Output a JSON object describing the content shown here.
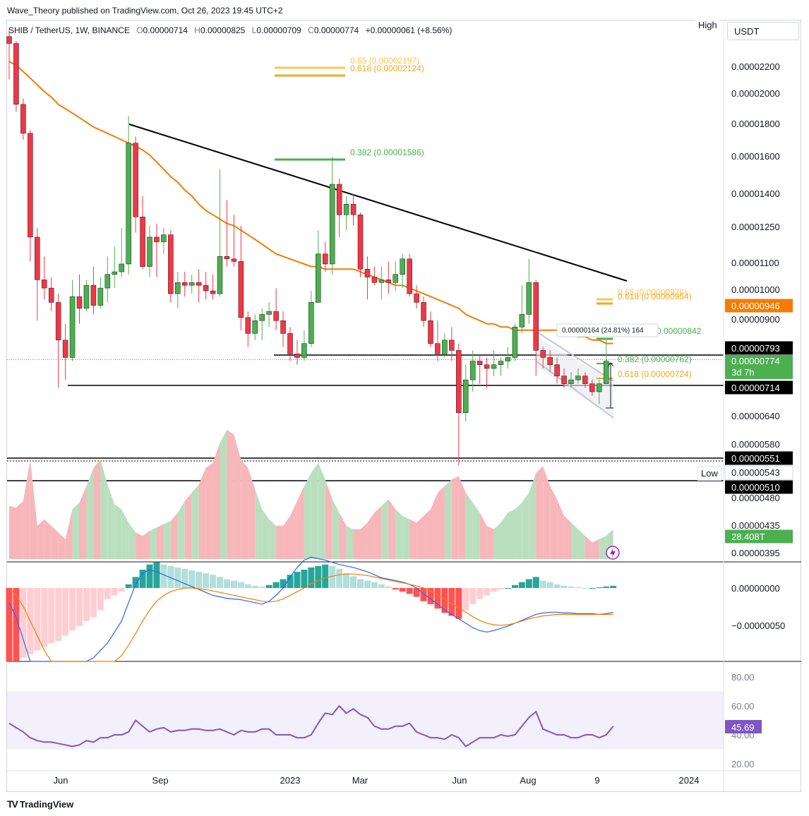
{
  "header": {
    "publisher": "Wave_Theory published on TradingView.com, Oct 26, 2023 19:45 UTC+2",
    "symbol": "SHIB / TetherUS, 1W, BINANCE",
    "open_key": "O",
    "open": "0.00000714",
    "high_key": "H",
    "high": "0.00000825",
    "low_key": "L",
    "low": "0.00000709",
    "close_key": "C",
    "close": "0.00000774",
    "change": "+0.00000061 (+8.56%)",
    "currency": "USDT",
    "high_label": "High",
    "low_label": "Low"
  },
  "colors": {
    "up": "#26a69a",
    "down": "#ef5350",
    "up_body": "#4caf50",
    "down_body": "#f23645",
    "ema": "#f57c00",
    "trendline": "#000000",
    "macd": "#2962ff",
    "signal": "#f57c00",
    "rsi": "#7e57c2",
    "vol_up": "#b9dfbe",
    "vol_down": "#f7b6ba"
  },
  "chart_data": [
    {
      "type": "candlestick",
      "x_axis_ticks": [
        "Jun",
        "Sep",
        "2023",
        "Mar",
        "Jun",
        "Aug",
        "9",
        "2024"
      ],
      "y_axis_ticks": [
        "0.00002200",
        "0.00002000",
        "0.00001800",
        "0.00001600",
        "0.00001400",
        "0.00001250",
        "0.00001100",
        "0.00001000",
        "0.00000900",
        "0.00000640",
        "0.00000580",
        "0.00000480",
        "0.00000435",
        "0.00000395"
      ],
      "candles": [
        {
          "o": 2.46e-05,
          "h": 2.52e-05,
          "l": 2.11e-05,
          "c": 2.4e-05
        },
        {
          "o": 2.4e-05,
          "h": 2.42e-05,
          "l": 1.88e-05,
          "c": 1.93e-05
        },
        {
          "o": 1.93e-05,
          "h": 1.97e-05,
          "l": 1.7e-05,
          "c": 1.74e-05
        },
        {
          "o": 1.74e-05,
          "h": 1.76e-05,
          "l": 1.1e-05,
          "c": 1.2e-05
        },
        {
          "o": 1.2e-05,
          "h": 1.24e-05,
          "l": 8.9e-06,
          "c": 1.03e-05
        },
        {
          "o": 1.03e-05,
          "h": 1.12e-05,
          "l": 9.6e-06,
          "c": 1e-05
        },
        {
          "o": 1e-05,
          "h": 1.04e-05,
          "l": 9.2e-06,
          "c": 9.5e-06
        },
        {
          "o": 9.5e-06,
          "h": 9.8e-06,
          "l": 7e-06,
          "c": 8.3e-06
        },
        {
          "o": 8.3e-06,
          "h": 8.8e-06,
          "l": 7.2e-06,
          "c": 7.8e-06
        },
        {
          "o": 7.8e-06,
          "h": 1.03e-05,
          "l": 7.7e-06,
          "c": 9.7e-06
        },
        {
          "o": 9.7e-06,
          "h": 1.05e-05,
          "l": 8.8e-06,
          "c": 9.3e-06
        },
        {
          "o": 9.3e-06,
          "h": 1.03e-05,
          "l": 9.2e-06,
          "c": 1.01e-05
        },
        {
          "o": 1.01e-05,
          "h": 1.08e-05,
          "l": 9.1e-06,
          "c": 9.4e-06
        },
        {
          "o": 9.4e-06,
          "h": 1.04e-05,
          "l": 9.3e-06,
          "c": 1e-05
        },
        {
          "o": 1e-05,
          "h": 1.12e-05,
          "l": 9.5e-06,
          "c": 1.05e-05
        },
        {
          "o": 1.05e-05,
          "h": 1.16e-05,
          "l": 1e-05,
          "c": 1.06e-05
        },
        {
          "o": 1.06e-05,
          "h": 1.24e-05,
          "l": 1.04e-05,
          "c": 1.09e-05
        },
        {
          "o": 1.09e-05,
          "h": 1.85e-05,
          "l": 1.05e-05,
          "c": 1.68e-05
        },
        {
          "o": 1.68e-05,
          "h": 1.72e-05,
          "l": 1.22e-05,
          "c": 1.29e-05
        },
        {
          "o": 1.29e-05,
          "h": 1.39e-05,
          "l": 1.07e-05,
          "c": 1.08e-05
        },
        {
          "o": 1.08e-05,
          "h": 1.25e-05,
          "l": 1.04e-05,
          "c": 1.2e-05
        },
        {
          "o": 1.2e-05,
          "h": 1.26e-05,
          "l": 1.04e-05,
          "c": 1.18e-05
        },
        {
          "o": 1.18e-05,
          "h": 1.24e-05,
          "l": 1.13e-05,
          "c": 1.21e-05
        },
        {
          "o": 1.21e-05,
          "h": 1.23e-05,
          "l": 9.5e-06,
          "c": 9.8e-06
        },
        {
          "o": 9.8e-06,
          "h": 1.06e-05,
          "l": 9.3e-06,
          "c": 1.02e-05
        },
        {
          "o": 1.02e-05,
          "h": 1.06e-05,
          "l": 9.7e-06,
          "c": 1.01e-05
        },
        {
          "o": 1.01e-05,
          "h": 1.05e-05,
          "l": 9.8e-06,
          "c": 1.02e-05
        },
        {
          "o": 1.02e-05,
          "h": 1.07e-05,
          "l": 9.5e-06,
          "c": 1.01e-05
        },
        {
          "o": 1.01e-05,
          "h": 1.06e-05,
          "l": 9.6e-06,
          "c": 9.9e-06
        },
        {
          "o": 9.9e-06,
          "h": 1.05e-05,
          "l": 9.6e-06,
          "c": 9.8e-06
        },
        {
          "o": 9.8e-06,
          "h": 1.53e-05,
          "l": 9.7e-06,
          "c": 1.12e-05
        },
        {
          "o": 1.12e-05,
          "h": 1.37e-05,
          "l": 1.08e-05,
          "c": 1.11e-05
        },
        {
          "o": 1.11e-05,
          "h": 1.3e-05,
          "l": 1.08e-05,
          "c": 1.1e-05
        },
        {
          "o": 1.1e-05,
          "h": 1.25e-05,
          "l": 8.6e-06,
          "c": 9e-06
        },
        {
          "o": 9e-06,
          "h": 9.2e-06,
          "l": 8.1e-06,
          "c": 8.5e-06
        },
        {
          "o": 8.5e-06,
          "h": 9.1e-06,
          "l": 8.3e-06,
          "c": 8.9e-06
        },
        {
          "o": 8.9e-06,
          "h": 9.3e-06,
          "l": 8.3e-06,
          "c": 9.1e-06
        },
        {
          "o": 9.1e-06,
          "h": 9.5e-06,
          "l": 8.7e-06,
          "c": 9.2e-06
        },
        {
          "o": 9.2e-06,
          "h": 1e-05,
          "l": 8.6e-06,
          "c": 8.9e-06
        },
        {
          "o": 8.9e-06,
          "h": 9.2e-06,
          "l": 8.1e-06,
          "c": 8.5e-06
        },
        {
          "o": 8.5e-06,
          "h": 8.7e-06,
          "l": 7.7e-06,
          "c": 7.9e-06
        },
        {
          "o": 7.9e-06,
          "h": 8.3e-06,
          "l": 7.6e-06,
          "c": 7.8e-06
        },
        {
          "o": 7.8e-06,
          "h": 8.6e-06,
          "l": 7.7e-06,
          "c": 8.2e-06
        },
        {
          "o": 8.2e-06,
          "h": 9.9e-06,
          "l": 8.1e-06,
          "c": 9.5e-06
        },
        {
          "o": 9.5e-06,
          "h": 1.23e-05,
          "l": 9.5e-06,
          "c": 1.13e-05
        },
        {
          "o": 1.13e-05,
          "h": 1.18e-05,
          "l": 1.06e-05,
          "c": 1.09e-05
        },
        {
          "o": 1.09e-05,
          "h": 1.6e-05,
          "l": 1.05e-05,
          "c": 1.45e-05
        },
        {
          "o": 1.45e-05,
          "h": 1.48e-05,
          "l": 1.2e-05,
          "c": 1.3e-05
        },
        {
          "o": 1.3e-05,
          "h": 1.39e-05,
          "l": 1.23e-05,
          "c": 1.35e-05
        },
        {
          "o": 1.35e-05,
          "h": 1.4e-05,
          "l": 1.25e-05,
          "c": 1.3e-05
        },
        {
          "o": 1.3e-05,
          "h": 1.31e-05,
          "l": 1.04e-05,
          "c": 1.07e-05
        },
        {
          "o": 1.07e-05,
          "h": 1.12e-05,
          "l": 9.6e-06,
          "c": 1.04e-05
        },
        {
          "o": 1.04e-05,
          "h": 1.08e-05,
          "l": 1.01e-05,
          "c": 1.02e-05
        },
        {
          "o": 1.02e-05,
          "h": 1.08e-05,
          "l": 9.6e-06,
          "c": 1.03e-05
        },
        {
          "o": 1.03e-05,
          "h": 1.1e-05,
          "l": 9.8e-06,
          "c": 1.02e-05
        },
        {
          "o": 1.02e-05,
          "h": 1.1e-05,
          "l": 9.9e-06,
          "c": 1.05e-05
        },
        {
          "o": 1.05e-05,
          "h": 1.13e-05,
          "l": 1e-05,
          "c": 1.11e-05
        },
        {
          "o": 1.11e-05,
          "h": 1.13e-05,
          "l": 9.7e-06,
          "c": 9.8e-06
        },
        {
          "o": 9.8e-06,
          "h": 1.01e-05,
          "l": 9.3e-06,
          "c": 9.5e-06
        },
        {
          "o": 9.5e-06,
          "h": 9.7e-06,
          "l": 8.7e-06,
          "c": 8.9e-06
        },
        {
          "o": 8.9e-06,
          "h": 9.2e-06,
          "l": 8.1e-06,
          "c": 8.2e-06
        },
        {
          "o": 8.2e-06,
          "h": 8.9e-06,
          "l": 7.7e-06,
          "c": 7.9e-06
        },
        {
          "o": 7.9e-06,
          "h": 8.5e-06,
          "l": 7.8e-06,
          "c": 8.3e-06
        },
        {
          "o": 8.3e-06,
          "h": 8.7e-06,
          "l": 7.7e-06,
          "c": 8e-06
        },
        {
          "o": 8e-06,
          "h": 8.2e-06,
          "l": 5.3e-06,
          "c": 6.4e-06
        },
        {
          "o": 6.4e-06,
          "h": 7.6e-06,
          "l": 6.2e-06,
          "c": 7.2e-06
        },
        {
          "o": 7.2e-06,
          "h": 8e-06,
          "l": 6.9e-06,
          "c": 7.7e-06
        },
        {
          "o": 7.7e-06,
          "h": 7.9e-06,
          "l": 7.1e-06,
          "c": 7.6e-06
        },
        {
          "o": 7.6e-06,
          "h": 7.8e-06,
          "l": 7e-06,
          "c": 7.5e-06
        },
        {
          "o": 7.5e-06,
          "h": 8e-06,
          "l": 7.3e-06,
          "c": 7.6e-06
        },
        {
          "o": 7.6e-06,
          "h": 7.8e-06,
          "l": 7.3e-06,
          "c": 7.7e-06
        },
        {
          "o": 7.7e-06,
          "h": 8.1e-06,
          "l": 7.5e-06,
          "c": 7.8e-06
        },
        {
          "o": 7.8e-06,
          "h": 8.8e-06,
          "l": 7.7e-06,
          "c": 8.7e-06
        },
        {
          "o": 8.7e-06,
          "h": 1.01e-05,
          "l": 8.5e-06,
          "c": 9.1e-06
        },
        {
          "o": 9.1e-06,
          "h": 1.11e-05,
          "l": 8.8e-06,
          "c": 1.02e-05
        },
        {
          "o": 1.02e-05,
          "h": 1.03e-05,
          "l": 7.3e-06,
          "c": 8e-06
        },
        {
          "o": 8e-06,
          "h": 8.1e-06,
          "l": 7.5e-06,
          "c": 7.8e-06
        },
        {
          "o": 7.8e-06,
          "h": 8e-06,
          "l": 7.4e-06,
          "c": 7.6e-06
        },
        {
          "o": 7.6e-06,
          "h": 7.8e-06,
          "l": 7.1e-06,
          "c": 7.3e-06
        },
        {
          "o": 7.3e-06,
          "h": 7.5e-06,
          "l": 7e-06,
          "c": 7.1e-06
        },
        {
          "o": 7.1e-06,
          "h": 7.4e-06,
          "l": 7e-06,
          "c": 7.2e-06
        },
        {
          "o": 7.2e-06,
          "h": 7.5e-06,
          "l": 7.1e-06,
          "c": 7.3e-06
        },
        {
          "o": 7.3e-06,
          "h": 7.4e-06,
          "l": 7e-06,
          "c": 7.1e-06
        },
        {
          "o": 7.1e-06,
          "h": 7.2e-06,
          "l": 6.8e-06,
          "c": 6.9e-06
        },
        {
          "o": 6.9e-06,
          "h": 7.2e-06,
          "l": 6.6e-06,
          "c": 7.1e-06
        },
        {
          "o": 7.1e-06,
          "h": 8.3e-06,
          "l": 7.1e-06,
          "c": 7.7e-06
        }
      ],
      "ema": [
        2.25e-05,
        2.22e-05,
        2.17e-05,
        2.12e-05,
        2.07e-05,
        2.02e-05,
        1.98e-05,
        1.93e-05,
        1.9e-05,
        1.87e-05,
        1.84e-05,
        1.81e-05,
        1.78e-05,
        1.76e-05,
        1.74e-05,
        1.72e-05,
        1.7e-05,
        1.68e-05,
        1.66e-05,
        1.64e-05,
        1.61e-05,
        1.57e-05,
        1.53e-05,
        1.49e-05,
        1.46e-05,
        1.42e-05,
        1.39e-05,
        1.35e-05,
        1.32e-05,
        1.3e-05,
        1.28e-05,
        1.26e-05,
        1.25e-05,
        1.23e-05,
        1.21e-05,
        1.19e-05,
        1.17e-05,
        1.15e-05,
        1.13e-05,
        1.12e-05,
        1.11e-05,
        1.1e-05,
        1.09e-05,
        1.08e-05,
        1.08e-05,
        1.07e-05,
        1.07e-05,
        1.07e-05,
        1.07e-05,
        1.07e-05,
        1.06e-05,
        1.05e-05,
        1.04e-05,
        1.03e-05,
        1.02e-05,
        1.01e-05,
        1.01e-05,
        1e-05,
        9.9e-06,
        9.8e-06,
        9.7e-06,
        9.6e-06,
        9.5e-06,
        9.4e-06,
        9.3e-06,
        9.1e-06,
        9e-06,
        8.9e-06,
        8.8e-06,
        8.8e-06,
        8.7e-06,
        8.7e-06,
        8.6e-06,
        8.6e-06,
        8.6e-06,
        8.6e-06,
        8.6e-06,
        8.6e-06,
        8.6e-06,
        8.5e-06,
        8.5e-06,
        8.4e-06,
        8.4e-06,
        8.3e-06,
        8.3e-06,
        8.2e-06,
        8.2e-06
      ]
    },
    {
      "type": "area",
      "name": "",
      "values": [
        32,
        31,
        35,
        60,
        20,
        24,
        20,
        16,
        12,
        30,
        34,
        44,
        55,
        60,
        45,
        33,
        30,
        22,
        16,
        14,
        17,
        19,
        21,
        23,
        28,
        35,
        40,
        45,
        55,
        58,
        70,
        78,
        75,
        60,
        55,
        42,
        30,
        24,
        20,
        20,
        26,
        35,
        44,
        52,
        58,
        48,
        36,
        28,
        20,
        18,
        18,
        22,
        28,
        32,
        36,
        30,
        26,
        24,
        22,
        26,
        30,
        40,
        44,
        48,
        50,
        40,
        34,
        28,
        20,
        18,
        22,
        28,
        30,
        34,
        40,
        52,
        56,
        44,
        36,
        26,
        22,
        18,
        14,
        10,
        12,
        14,
        18
      ]
    },
    {
      "type": "bar",
      "name": "",
      "y_axis_ticks": [
        "0.00000000",
        "−0.00000050"
      ],
      "histogram": [
        -100,
        -100,
        -95,
        -90,
        -85,
        -80,
        -75,
        -72,
        -65,
        -58,
        -52,
        -45,
        -40,
        -30,
        -15,
        -10,
        -5,
        5,
        15,
        25,
        32,
        35,
        32,
        30,
        28,
        26,
        24,
        22,
        20,
        18,
        15,
        12,
        10,
        8,
        5,
        3,
        2,
        4,
        8,
        12,
        18,
        22,
        25,
        28,
        30,
        32,
        30,
        26,
        20,
        16,
        12,
        10,
        8,
        5,
        2,
        -2,
        -5,
        -8,
        -12,
        -18,
        -22,
        -28,
        -34,
        -38,
        -42,
        -30,
        -22,
        -15,
        -10,
        -5,
        -2,
        0,
        4,
        8,
        12,
        15,
        10,
        8,
        5,
        3,
        2,
        1,
        0,
        0,
        1,
        2,
        3
      ],
      "macd": [
        -20,
        -40,
        -70,
        -100,
        -125,
        -140,
        -150,
        -155,
        -150,
        -140,
        -125,
        -110,
        -95,
        -85,
        -75,
        -60,
        -45,
        -20,
        5,
        20,
        25,
        22,
        18,
        14,
        10,
        6,
        2,
        -2,
        -6,
        -10,
        -12,
        -14,
        -15,
        -16,
        -18,
        -20,
        -22,
        -18,
        -10,
        0,
        15,
        28,
        38,
        42,
        40,
        38,
        35,
        32,
        30,
        28,
        25,
        22,
        18,
        14,
        12,
        10,
        8,
        5,
        0,
        -8,
        -15,
        -22,
        -30,
        -36,
        -42,
        -48,
        -54,
        -58,
        -60,
        -58,
        -55,
        -52,
        -48,
        -44,
        -40,
        -36,
        -34,
        -33,
        -33,
        -34,
        -34,
        -35,
        -35,
        -35,
        -36,
        -35,
        -33
      ],
      "signal": [
        0,
        -10,
        -25,
        -45,
        -65,
        -85,
        -100,
        -115,
        -125,
        -130,
        -130,
        -128,
        -124,
        -118,
        -110,
        -102,
        -92,
        -78,
        -62,
        -45,
        -30,
        -18,
        -10,
        -5,
        -2,
        0,
        0,
        -1,
        -2,
        -4,
        -6,
        -8,
        -10,
        -12,
        -14,
        -16,
        -18,
        -19,
        -18,
        -15,
        -10,
        -5,
        0,
        6,
        10,
        14,
        16,
        18,
        19,
        19,
        18,
        17,
        15,
        13,
        11,
        9,
        7,
        5,
        3,
        0,
        -4,
        -9,
        -15,
        -21,
        -27,
        -33,
        -39,
        -44,
        -48,
        -50,
        -51,
        -50,
        -48,
        -45,
        -42,
        -40,
        -38,
        -37,
        -36,
        -36,
        -36,
        -36,
        -36,
        -36,
        -36,
        -36,
        -36
      ]
    },
    {
      "type": "line",
      "name": "",
      "y_axis_ticks": [
        "80.00",
        "60.00",
        "40.00",
        "20.00"
      ],
      "ylim": [
        14,
        96
      ],
      "values": [
        48,
        45,
        42,
        38,
        36,
        35,
        35,
        34,
        33,
        32,
        33,
        36,
        35,
        38,
        38,
        40,
        40,
        42,
        50,
        46,
        42,
        44,
        45,
        42,
        43,
        43,
        44,
        44,
        43,
        43,
        44,
        42,
        40,
        43,
        42,
        42,
        44,
        44,
        40,
        40,
        40,
        38,
        38,
        40,
        48,
        55,
        54,
        60,
        55,
        58,
        54,
        52,
        46,
        44,
        44,
        46,
        46,
        48,
        42,
        40,
        38,
        38,
        37,
        40,
        38,
        32,
        35,
        38,
        38,
        38,
        40,
        39,
        40,
        46,
        52,
        56,
        44,
        42,
        40,
        40,
        38,
        38,
        40,
        40,
        38,
        40,
        46
      ]
    }
  ],
  "annotations": {
    "fib_top": [
      {
        "text": "0.65 (0.00002197)",
        "color": "#f9c74f",
        "price": 2.197e-05
      },
      {
        "text": "0.618 (0.00002124)",
        "color": "#f5a623",
        "price": 2.124e-05
      },
      {
        "text": "0.382 (0.00001586)",
        "color": "#4caf50",
        "price": 1.586e-05
      }
    ],
    "fib_right": [
      {
        "text": "0.65 (0.00000976)",
        "color": "#f9c74f"
      },
      {
        "text": "0.618 (0.00000954)",
        "color": "#f5a623"
      },
      {
        "text": "0.00000842",
        "color": "#4caf50"
      },
      {
        "text": "0.382 (0.00000762)",
        "color": "#4caf50"
      },
      {
        "text": "0.618 (0.00000724)",
        "color": "#f5a623"
      }
    ],
    "measure_label": "0.00000164 (24.81%) 164"
  },
  "price_tags": {
    "ema": "0.00000946",
    "level_793": "0.00000793",
    "last_price": "0.00000774",
    "countdown": "3d 7h",
    "level_714": "0.00000714",
    "level_551": "0.00000551",
    "level_543": "0.00000543",
    "level_510": "0.00000510",
    "volume": "28.408T",
    "rsi": "45.69"
  },
  "footer": {
    "brand": "TradingView",
    "logo": "TV"
  }
}
